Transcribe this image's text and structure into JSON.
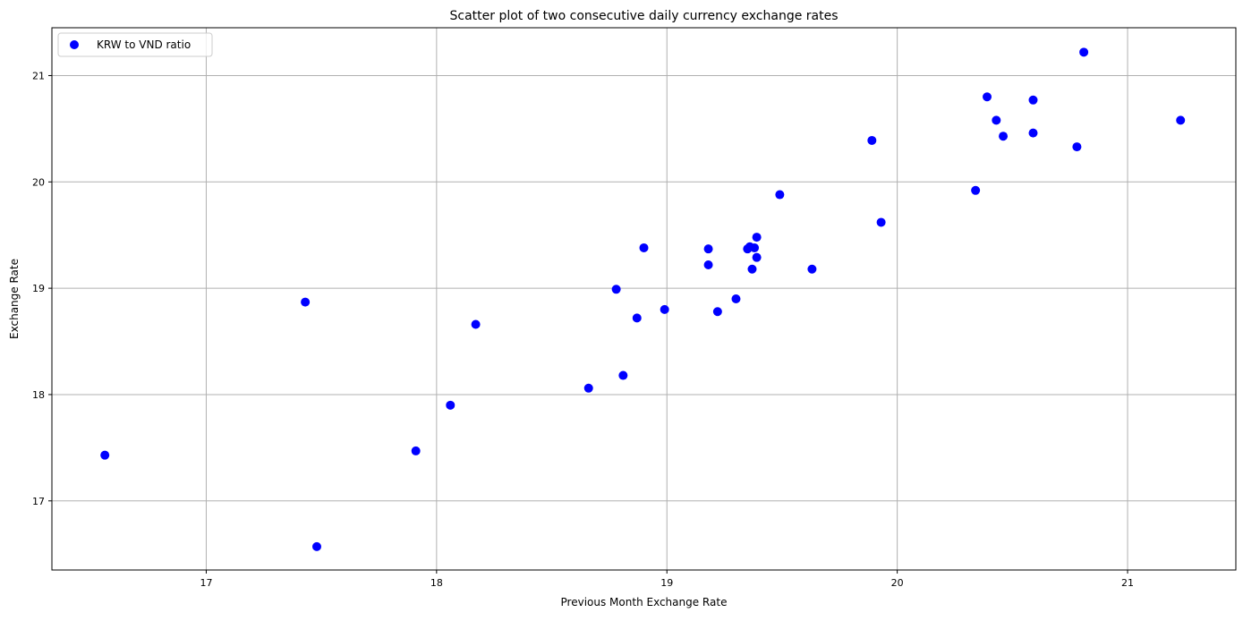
{
  "chart_data": {
    "type": "scatter",
    "title": "Scatter plot of two consecutive daily currency exchange rates",
    "xlabel": "Previous Month Exchange Rate",
    "ylabel": "Exchange Rate",
    "xlim": [
      16.33,
      21.47
    ],
    "ylim": [
      16.35,
      21.45
    ],
    "xticks": [
      17,
      18,
      19,
      20,
      21
    ],
    "yticks": [
      17,
      18,
      19,
      20,
      21
    ],
    "grid": true,
    "legend_position": "top-left",
    "colors": {
      "marker": "#0000ff",
      "grid": "#b0b0b0",
      "axis": "#000000"
    },
    "series": [
      {
        "name": "KRW to VND ratio",
        "points": [
          {
            "x": 16.56,
            "y": 17.43
          },
          {
            "x": 17.43,
            "y": 18.87
          },
          {
            "x": 17.48,
            "y": 16.57
          },
          {
            "x": 17.91,
            "y": 17.47
          },
          {
            "x": 18.06,
            "y": 17.9
          },
          {
            "x": 18.17,
            "y": 18.66
          },
          {
            "x": 18.66,
            "y": 18.06
          },
          {
            "x": 18.78,
            "y": 18.99
          },
          {
            "x": 18.81,
            "y": 18.18
          },
          {
            "x": 18.87,
            "y": 18.72
          },
          {
            "x": 18.9,
            "y": 19.38
          },
          {
            "x": 18.99,
            "y": 18.8
          },
          {
            "x": 19.18,
            "y": 19.37
          },
          {
            "x": 19.18,
            "y": 19.22
          },
          {
            "x": 19.22,
            "y": 18.78
          },
          {
            "x": 19.3,
            "y": 18.9
          },
          {
            "x": 19.35,
            "y": 19.37
          },
          {
            "x": 19.36,
            "y": 19.39
          },
          {
            "x": 19.37,
            "y": 19.18
          },
          {
            "x": 19.38,
            "y": 19.38
          },
          {
            "x": 19.39,
            "y": 19.29
          },
          {
            "x": 19.39,
            "y": 19.48
          },
          {
            "x": 19.49,
            "y": 19.88
          },
          {
            "x": 19.63,
            "y": 19.18
          },
          {
            "x": 19.89,
            "y": 20.39
          },
          {
            "x": 19.93,
            "y": 19.62
          },
          {
            "x": 20.34,
            "y": 19.92
          },
          {
            "x": 20.39,
            "y": 20.8
          },
          {
            "x": 20.43,
            "y": 20.58
          },
          {
            "x": 20.46,
            "y": 20.43
          },
          {
            "x": 20.59,
            "y": 20.77
          },
          {
            "x": 20.59,
            "y": 20.46
          },
          {
            "x": 20.78,
            "y": 20.33
          },
          {
            "x": 20.81,
            "y": 21.22
          },
          {
            "x": 21.23,
            "y": 20.58
          }
        ]
      }
    ]
  }
}
